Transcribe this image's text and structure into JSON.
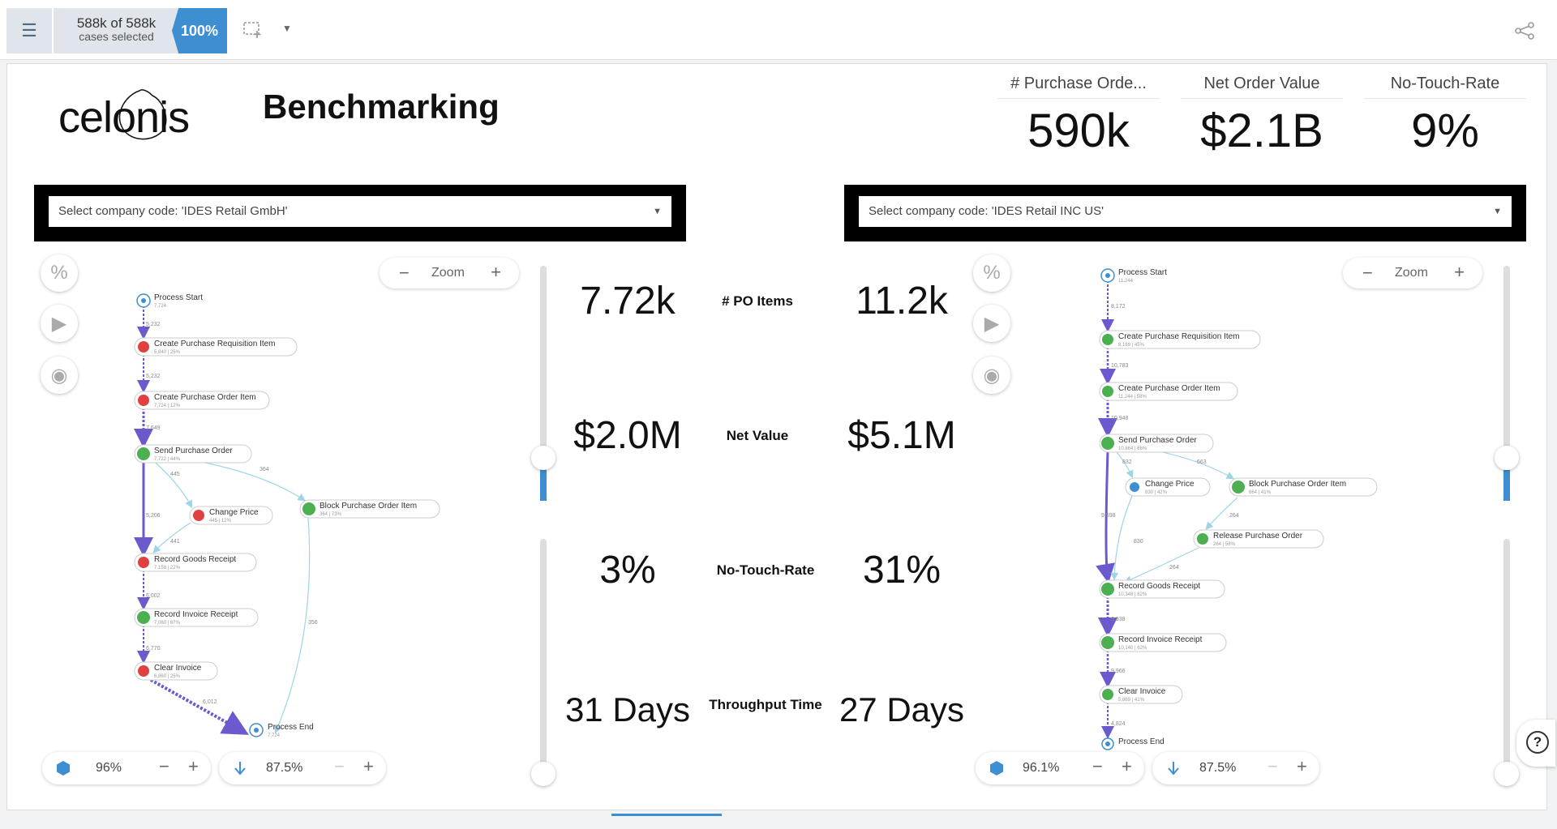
{
  "topbar": {
    "cases_count": "588k of 588k",
    "cases_label": "cases selected",
    "selection_pct": "100%"
  },
  "header": {
    "logo_text": "celonis",
    "title": "Benchmarking",
    "kpis": [
      {
        "label": "# Purchase Orde...",
        "value": "590k"
      },
      {
        "label": "Net Order Value",
        "value": "$2.1B"
      },
      {
        "label": "No-Touch-Rate",
        "value": "9%"
      }
    ]
  },
  "left": {
    "dropdown": "Select company code: 'IDES Retail GmbH'",
    "zoom_label": "Zoom",
    "activities_pct": "96%",
    "connections_pct": "87.5%",
    "slider_level": 0.3,
    "nodes": [
      {
        "name": "Process Start",
        "sub": "7,724",
        "color": "#3d8fd1"
      },
      {
        "name": "Create Purchase Requisition Item",
        "sub": "5,840 | 25%",
        "color": "#e04040"
      },
      {
        "name": "Create Purchase Order Item",
        "sub": "7,724 | 12%",
        "color": "#e04040"
      },
      {
        "name": "Send Purchase Order",
        "sub": "7,722 | 44%",
        "color": "#4caf50"
      },
      {
        "name": "Change Price",
        "sub": "445 | 12%",
        "color": "#e04040"
      },
      {
        "name": "Block Purchase Order Item",
        "sub": "364 | 73%",
        "color": "#4caf50"
      },
      {
        "name": "Record Goods Receipt",
        "sub": "7,158 | 22%",
        "color": "#e04040"
      },
      {
        "name": "Record Invoice Receipt",
        "sub": "7,060 | 67%",
        "color": "#4caf50"
      },
      {
        "name": "Clear Invoice",
        "sub": "6,860 | 25%",
        "color": "#e04040"
      },
      {
        "name": "Process End",
        "sub": "7,724",
        "color": "#3d8fd1"
      }
    ],
    "edges": [
      "5,232",
      "5,232",
      "7,649",
      "445",
      "364",
      "5,206",
      "441",
      "6,002",
      "6,770",
      "6,012",
      "356"
    ]
  },
  "right": {
    "dropdown": "Select company code: 'IDES Retail INC US'",
    "zoom_label": "Zoom",
    "activities_pct": "96.1%",
    "connections_pct": "87.5%",
    "slider_level": 0.3,
    "nodes": [
      {
        "name": "Process Start",
        "sub": "11,244",
        "color": "#3d8fd1"
      },
      {
        "name": "Create Purchase Requisition Item",
        "sub": "8,169 | 45%",
        "color": "#4caf50"
      },
      {
        "name": "Create Purchase Order Item",
        "sub": "11,244 | 58%",
        "color": "#4caf50"
      },
      {
        "name": "Send Purchase Order",
        "sub": "10,864 | 66%",
        "color": "#4caf50"
      },
      {
        "name": "Change Price",
        "sub": "830 | 42%",
        "color": "#3d8fd1"
      },
      {
        "name": "Block Purchase Order Item",
        "sub": "664 | 41%",
        "color": "#4caf50"
      },
      {
        "name": "Release Purchase Order",
        "sub": "264 | 58%",
        "color": "#4caf50"
      },
      {
        "name": "Record Goods Receipt",
        "sub": "10,348 | 82%",
        "color": "#4caf50"
      },
      {
        "name": "Record Invoice Receipt",
        "sub": "10,140 | 62%",
        "color": "#4caf50"
      },
      {
        "name": "Clear Invoice",
        "sub": "5,869 | 41%",
        "color": "#4caf50"
      },
      {
        "name": "Process End",
        "sub": "",
        "color": "#3d8fd1"
      }
    ],
    "edges": [
      "8,172",
      "10,783",
      "10,948",
      "832",
      "663",
      "9,598",
      "830",
      "264",
      "264",
      "9,938",
      "9,966",
      "4,824"
    ]
  },
  "comparison": [
    {
      "left": "7.72k",
      "label": "# PO Items",
      "right": "11.2k"
    },
    {
      "left": "$2.0M",
      "label": "Net Value",
      "right": "$5.1M"
    },
    {
      "left": "3%",
      "label": "No-Touch-Rate",
      "right": "31%"
    },
    {
      "left": "31 Days",
      "label": "Throughput Time",
      "right": "27 Days"
    }
  ],
  "help": {
    "label": "?"
  }
}
